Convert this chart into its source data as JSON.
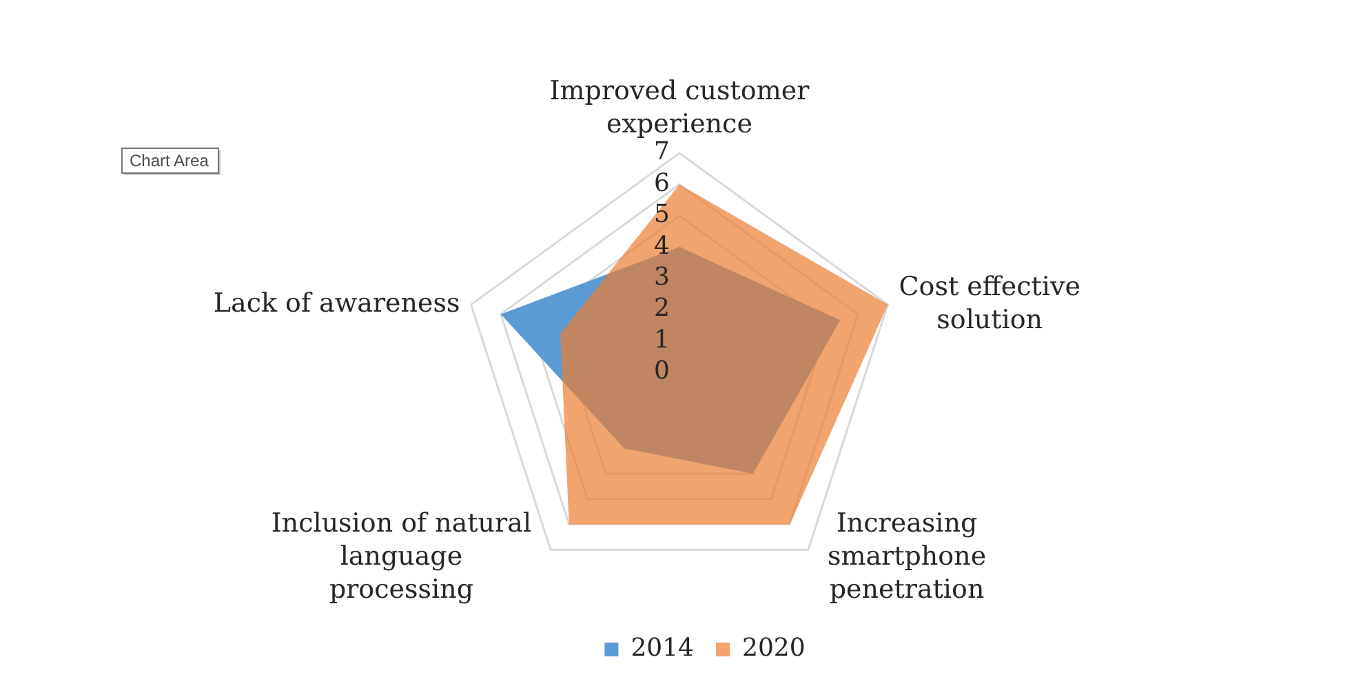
{
  "chart_data": {
    "type": "radar",
    "categories": [
      "Improved customer experience",
      "Cost effective solution",
      "Increasing smartphone penetration",
      "Inclusion of natural language processing",
      "Lack of awareness"
    ],
    "series": [
      {
        "name": "2014",
        "color": "#5b9bd5",
        "values": [
          4,
          5.4,
          4,
          3,
          6
        ]
      },
      {
        "name": "2020",
        "color": "#f1a46e",
        "values": [
          6,
          7,
          6,
          6,
          4
        ]
      }
    ],
    "ylim": [
      0,
      7
    ],
    "yticks": [
      0,
      1,
      2,
      3,
      4,
      5,
      6,
      7
    ],
    "grid": true,
    "legend": "bottom",
    "marker": "none",
    "annotations": [
      "Chart Area"
    ]
  }
}
